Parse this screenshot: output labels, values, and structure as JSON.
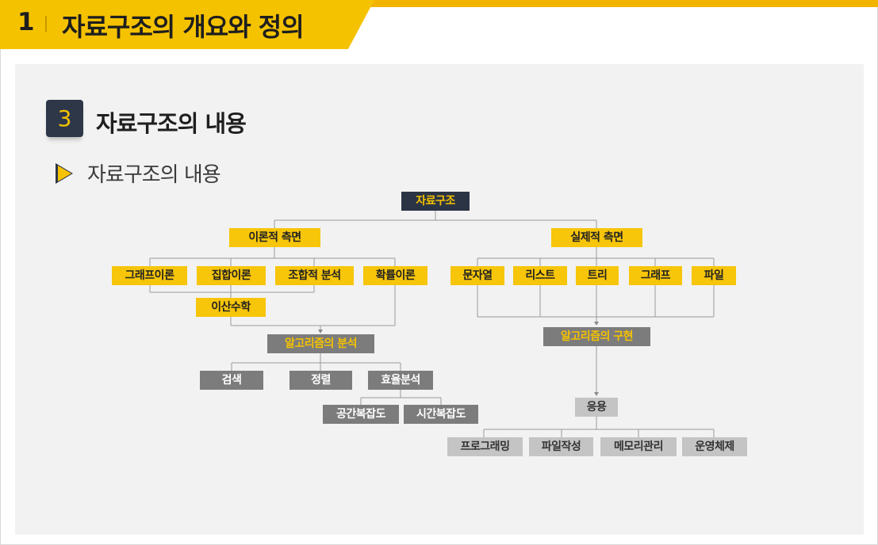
{
  "header": {
    "number": "1",
    "title": "자료구조의 개요와 정의"
  },
  "section": {
    "number": "3",
    "title": "자료구조의 내용"
  },
  "subsection": {
    "title": "자료구조의 내용"
  },
  "diagram": {
    "root": "자료구조",
    "theory": {
      "label": "이론적 측면",
      "children": [
        "그래프이론",
        "집합이론",
        "조합적 분석",
        "확률이론"
      ],
      "discrete": "이산수학",
      "analysis": "알고리즘의 분석",
      "analysis_children": [
        "검색",
        "정렬",
        "효율분석"
      ],
      "efficiency_children": [
        "공간복잡도",
        "시간복잡도"
      ]
    },
    "practice": {
      "label": "실제적 측면",
      "children": [
        "문자열",
        "리스트",
        "트리",
        "그래프",
        "파일"
      ],
      "implementation": "알고리즘의 구현",
      "application": "응용",
      "application_children": [
        "프로그래밍",
        "파일작성",
        "메모리관리",
        "운영체제"
      ]
    }
  },
  "colors": {
    "accent": "#f5c200",
    "dark": "#2b3445",
    "gray": "#7c7c7c",
    "light": "#c4c4c4",
    "panel": "#f2f2f2"
  }
}
